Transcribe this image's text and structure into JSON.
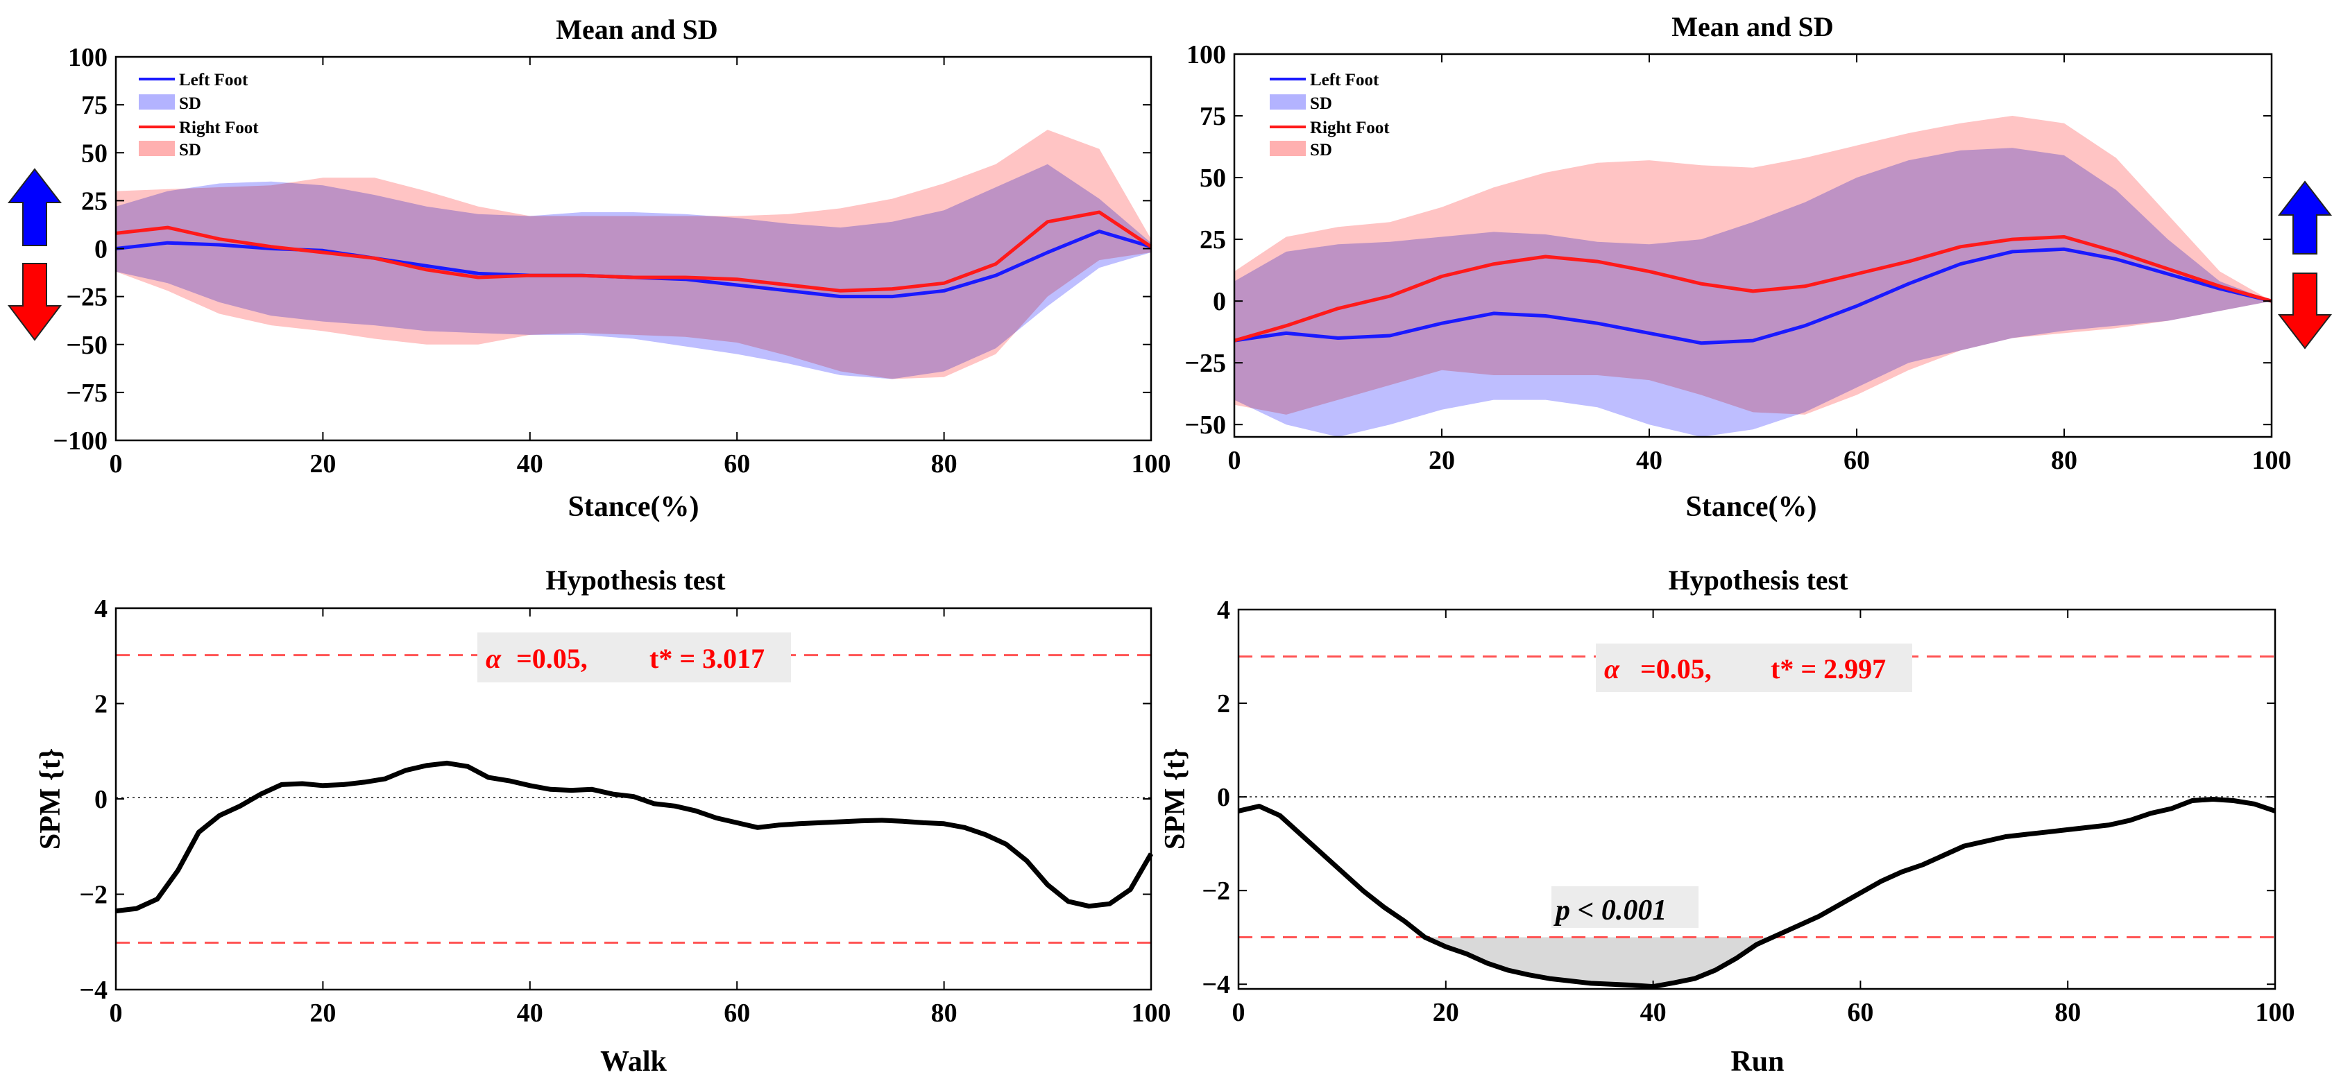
{
  "colors": {
    "left_line": "#1a1aff",
    "left_band": "#b3b3ff",
    "right_line": "#ff1a1a",
    "right_band": "#ffb0b0",
    "arrow_up": "#0000ff",
    "arrow_down": "#ff0000",
    "threshold": "#ff5555",
    "cluster_fill": "#d9d9d9",
    "annotation_bg": "#ececec"
  },
  "chart_data": [
    {
      "id": "walk-mean",
      "type": "line",
      "title": "Mean and SD",
      "xlabel": "Stance(%)",
      "ylabel": "",
      "xlim": [
        0,
        100
      ],
      "ylim": [
        -100,
        100
      ],
      "xticks": [
        0,
        20,
        40,
        60,
        80,
        100
      ],
      "yticks": [
        100,
        75,
        50,
        25,
        0,
        -25,
        -50,
        -75,
        -100
      ],
      "ytick_labels": [
        "100",
        "75",
        "50",
        "25",
        "0",
        "−25",
        "−50",
        "−75",
        "−100"
      ],
      "legend": {
        "position": "top-left",
        "entries": [
          {
            "label": "Left Foot",
            "kind": "line",
            "color": "left_line"
          },
          {
            "label": "SD",
            "kind": "band",
            "color": "left_band"
          },
          {
            "label": "Right Foot",
            "kind": "line",
            "color": "right_line"
          },
          {
            "label": "SD",
            "kind": "band",
            "color": "right_band"
          }
        ]
      },
      "arrows": "left",
      "x": [
        0,
        5,
        10,
        15,
        20,
        25,
        30,
        35,
        40,
        45,
        50,
        55,
        60,
        65,
        70,
        75,
        80,
        85,
        90,
        95,
        100
      ],
      "series": [
        {
          "name": "Left Foot",
          "color": "left_line",
          "band_color": "left_band",
          "values": [
            0,
            3,
            2,
            0,
            -1,
            -5,
            -9,
            -13,
            -14,
            -14,
            -15,
            -16,
            -19,
            -22,
            -25,
            -25,
            -22,
            -14,
            -2,
            9,
            1
          ],
          "sd_upper": [
            22,
            30,
            34,
            35,
            33,
            28,
            22,
            18,
            17,
            19,
            19,
            18,
            16,
            13,
            11,
            14,
            20,
            32,
            44,
            26,
            3
          ],
          "sd_lower": [
            -12,
            -18,
            -28,
            -35,
            -38,
            -40,
            -43,
            -44,
            -45,
            -45,
            -47,
            -51,
            -55,
            -60,
            -66,
            -68,
            -64,
            -52,
            -30,
            -10,
            -2
          ]
        },
        {
          "name": "Right Foot",
          "color": "right_line",
          "band_color": "right_band",
          "values": [
            8,
            11,
            5,
            1,
            -2,
            -5,
            -11,
            -15,
            -14,
            -14,
            -15,
            -15,
            -16,
            -19,
            -22,
            -21,
            -18,
            -8,
            14,
            19,
            1
          ],
          "sd_upper": [
            30,
            31,
            32,
            33,
            37,
            37,
            30,
            22,
            17,
            17,
            17,
            17,
            17,
            18,
            21,
            26,
            34,
            44,
            62,
            52,
            5
          ],
          "sd_lower": [
            -12,
            -22,
            -34,
            -40,
            -43,
            -47,
            -50,
            -50,
            -45,
            -44,
            -45,
            -46,
            -49,
            -56,
            -64,
            -68,
            -67,
            -55,
            -25,
            -6,
            -2
          ]
        }
      ]
    },
    {
      "id": "run-mean",
      "type": "line",
      "title": "Mean and SD",
      "xlabel": "Stance(%)",
      "ylabel": "",
      "xlim": [
        0,
        100
      ],
      "ylim": [
        -55,
        100
      ],
      "xticks": [
        0,
        20,
        40,
        60,
        80,
        100
      ],
      "yticks": [
        100,
        75,
        50,
        25,
        0,
        -25,
        -50
      ],
      "ytick_labels": [
        "100",
        "75",
        "50",
        "25",
        "0",
        "−25",
        "−50"
      ],
      "legend": {
        "position": "top-left",
        "entries": [
          {
            "label": "Left Foot",
            "kind": "line",
            "color": "left_line"
          },
          {
            "label": "SD",
            "kind": "band",
            "color": "left_band"
          },
          {
            "label": "Right Foot",
            "kind": "line",
            "color": "right_line"
          },
          {
            "label": "SD",
            "kind": "band",
            "color": "right_band"
          }
        ]
      },
      "arrows": "right",
      "x": [
        0,
        5,
        10,
        15,
        20,
        25,
        30,
        35,
        40,
        45,
        50,
        55,
        60,
        65,
        70,
        75,
        80,
        85,
        90,
        95,
        100
      ],
      "series": [
        {
          "name": "Left Foot",
          "color": "left_line",
          "band_color": "left_band",
          "values": [
            -16,
            -13,
            -15,
            -14,
            -9,
            -5,
            -6,
            -9,
            -13,
            -17,
            -16,
            -10,
            -2,
            7,
            15,
            20,
            21,
            17,
            11,
            5,
            0
          ],
          "sd_upper": [
            8,
            20,
            23,
            24,
            26,
            28,
            27,
            24,
            23,
            25,
            32,
            40,
            50,
            57,
            61,
            62,
            59,
            45,
            25,
            8,
            0
          ],
          "sd_lower": [
            -40,
            -50,
            -55,
            -50,
            -44,
            -40,
            -40,
            -43,
            -50,
            -55,
            -52,
            -45,
            -35,
            -25,
            -20,
            -15,
            -12,
            -10,
            -8,
            -4,
            0
          ]
        },
        {
          "name": "Right Foot",
          "color": "right_line",
          "band_color": "right_band",
          "values": [
            -16,
            -10,
            -3,
            2,
            10,
            15,
            18,
            16,
            12,
            7,
            4,
            6,
            11,
            16,
            22,
            25,
            26,
            20,
            13,
            6,
            0
          ],
          "sd_upper": [
            12,
            26,
            30,
            32,
            38,
            46,
            52,
            56,
            57,
            55,
            54,
            58,
            63,
            68,
            72,
            75,
            72,
            58,
            35,
            12,
            0
          ],
          "sd_lower": [
            -42,
            -46,
            -40,
            -34,
            -28,
            -30,
            -30,
            -30,
            -32,
            -38,
            -45,
            -46,
            -38,
            -28,
            -20,
            -15,
            -13,
            -11,
            -8,
            -4,
            0
          ]
        }
      ]
    },
    {
      "id": "walk-spm",
      "type": "line",
      "title": "Hypothesis test",
      "xlabel": "Walk",
      "ylabel": "SPM {t}",
      "xlim": [
        0,
        100
      ],
      "ylim": [
        -4,
        4
      ],
      "xticks": [
        0,
        20,
        40,
        60,
        80,
        100
      ],
      "yticks": [
        4,
        2,
        0,
        -2,
        -4
      ],
      "ytick_labels": [
        "4",
        "2",
        "0",
        "−2",
        "−4"
      ],
      "threshold": 3.017,
      "annotation": {
        "alpha": "α",
        "alpha_value": "=0.05,",
        "tstar": "t* = 3.017"
      },
      "x": [
        0,
        2,
        4,
        6,
        8,
        10,
        12,
        14,
        16,
        18,
        20,
        22,
        24,
        26,
        28,
        30,
        32,
        34,
        36,
        38,
        40,
        42,
        44,
        46,
        48,
        50,
        52,
        54,
        56,
        58,
        60,
        62,
        64,
        66,
        68,
        70,
        72,
        74,
        76,
        78,
        80,
        82,
        84,
        86,
        88,
        90,
        92,
        94,
        96,
        98,
        100
      ],
      "series": [
        {
          "name": "SPM{t}",
          "color": "#000000",
          "values": [
            -2.35,
            -2.3,
            -2.1,
            -1.5,
            -0.7,
            -0.35,
            -0.15,
            0.1,
            0.3,
            0.32,
            0.28,
            0.3,
            0.35,
            0.42,
            0.6,
            0.7,
            0.75,
            0.68,
            0.45,
            0.38,
            0.28,
            0.2,
            0.18,
            0.2,
            0.1,
            0.05,
            -0.1,
            -0.15,
            -0.25,
            -0.4,
            -0.5,
            -0.6,
            -0.55,
            -0.52,
            -0.5,
            -0.48,
            -0.46,
            -0.45,
            -0.47,
            -0.5,
            -0.52,
            -0.6,
            -0.75,
            -0.95,
            -1.3,
            -1.8,
            -2.15,
            -2.25,
            -2.2,
            -1.9,
            -1.15
          ]
        }
      ]
    },
    {
      "id": "run-spm",
      "type": "line",
      "title": "Hypothesis test",
      "xlabel": "Run",
      "ylabel": "SPM {t}",
      "xlim": [
        0,
        100
      ],
      "ylim": [
        -4.1,
        4
      ],
      "xticks": [
        0,
        20,
        40,
        60,
        80,
        100
      ],
      "yticks": [
        4,
        2,
        0,
        -2,
        -4
      ],
      "ytick_labels": [
        "4",
        "2",
        "0",
        "−2",
        "−4"
      ],
      "threshold": 2.997,
      "annotation": {
        "alpha": "α",
        "alpha_value": "=0.05,",
        "tstar": "t* = 2.997"
      },
      "cluster": {
        "x_start": 19,
        "x_end": 53,
        "label": "p < 0.001"
      },
      "x": [
        0,
        2,
        4,
        6,
        8,
        10,
        12,
        14,
        16,
        18,
        20,
        22,
        24,
        26,
        28,
        30,
        32,
        34,
        36,
        38,
        40,
        42,
        44,
        46,
        48,
        50,
        52,
        54,
        56,
        58,
        60,
        62,
        64,
        66,
        68,
        70,
        72,
        74,
        76,
        78,
        80,
        82,
        84,
        86,
        88,
        90,
        92,
        94,
        96,
        98,
        100
      ],
      "series": [
        {
          "name": "SPM{t}",
          "color": "#000000",
          "values": [
            -0.3,
            -0.2,
            -0.4,
            -0.8,
            -1.2,
            -1.6,
            -2.0,
            -2.35,
            -2.65,
            -3.0,
            -3.2,
            -3.35,
            -3.55,
            -3.7,
            -3.8,
            -3.88,
            -3.93,
            -3.98,
            -4.0,
            -4.02,
            -4.05,
            -3.97,
            -3.88,
            -3.7,
            -3.45,
            -3.15,
            -2.95,
            -2.75,
            -2.55,
            -2.3,
            -2.05,
            -1.8,
            -1.6,
            -1.45,
            -1.25,
            -1.05,
            -0.95,
            -0.85,
            -0.8,
            -0.75,
            -0.7,
            -0.65,
            -0.6,
            -0.5,
            -0.35,
            -0.25,
            -0.08,
            -0.05,
            -0.08,
            -0.15,
            -0.3
          ]
        }
      ]
    }
  ]
}
